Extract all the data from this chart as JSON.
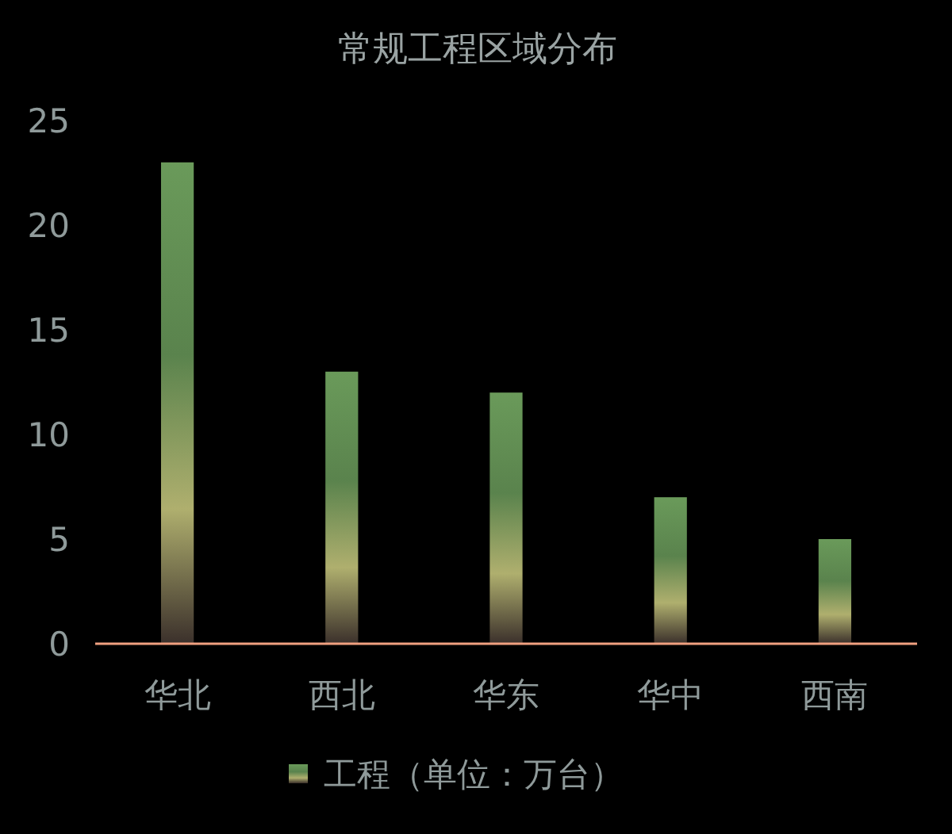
{
  "chart_data": {
    "type": "bar",
    "title": "常规工程区域分布",
    "categories": [
      "华北",
      "西北",
      "华东",
      "华中",
      "西南"
    ],
    "series": [
      {
        "name": "工程（单位：万台）",
        "color": "#6a9a5a",
        "values": [
          23,
          13,
          12,
          7,
          5
        ]
      }
    ],
    "ylim": [
      0,
      25
    ],
    "yticks": [
      0,
      5,
      10,
      15,
      20,
      25
    ],
    "grid": false,
    "legend": "bottom"
  }
}
